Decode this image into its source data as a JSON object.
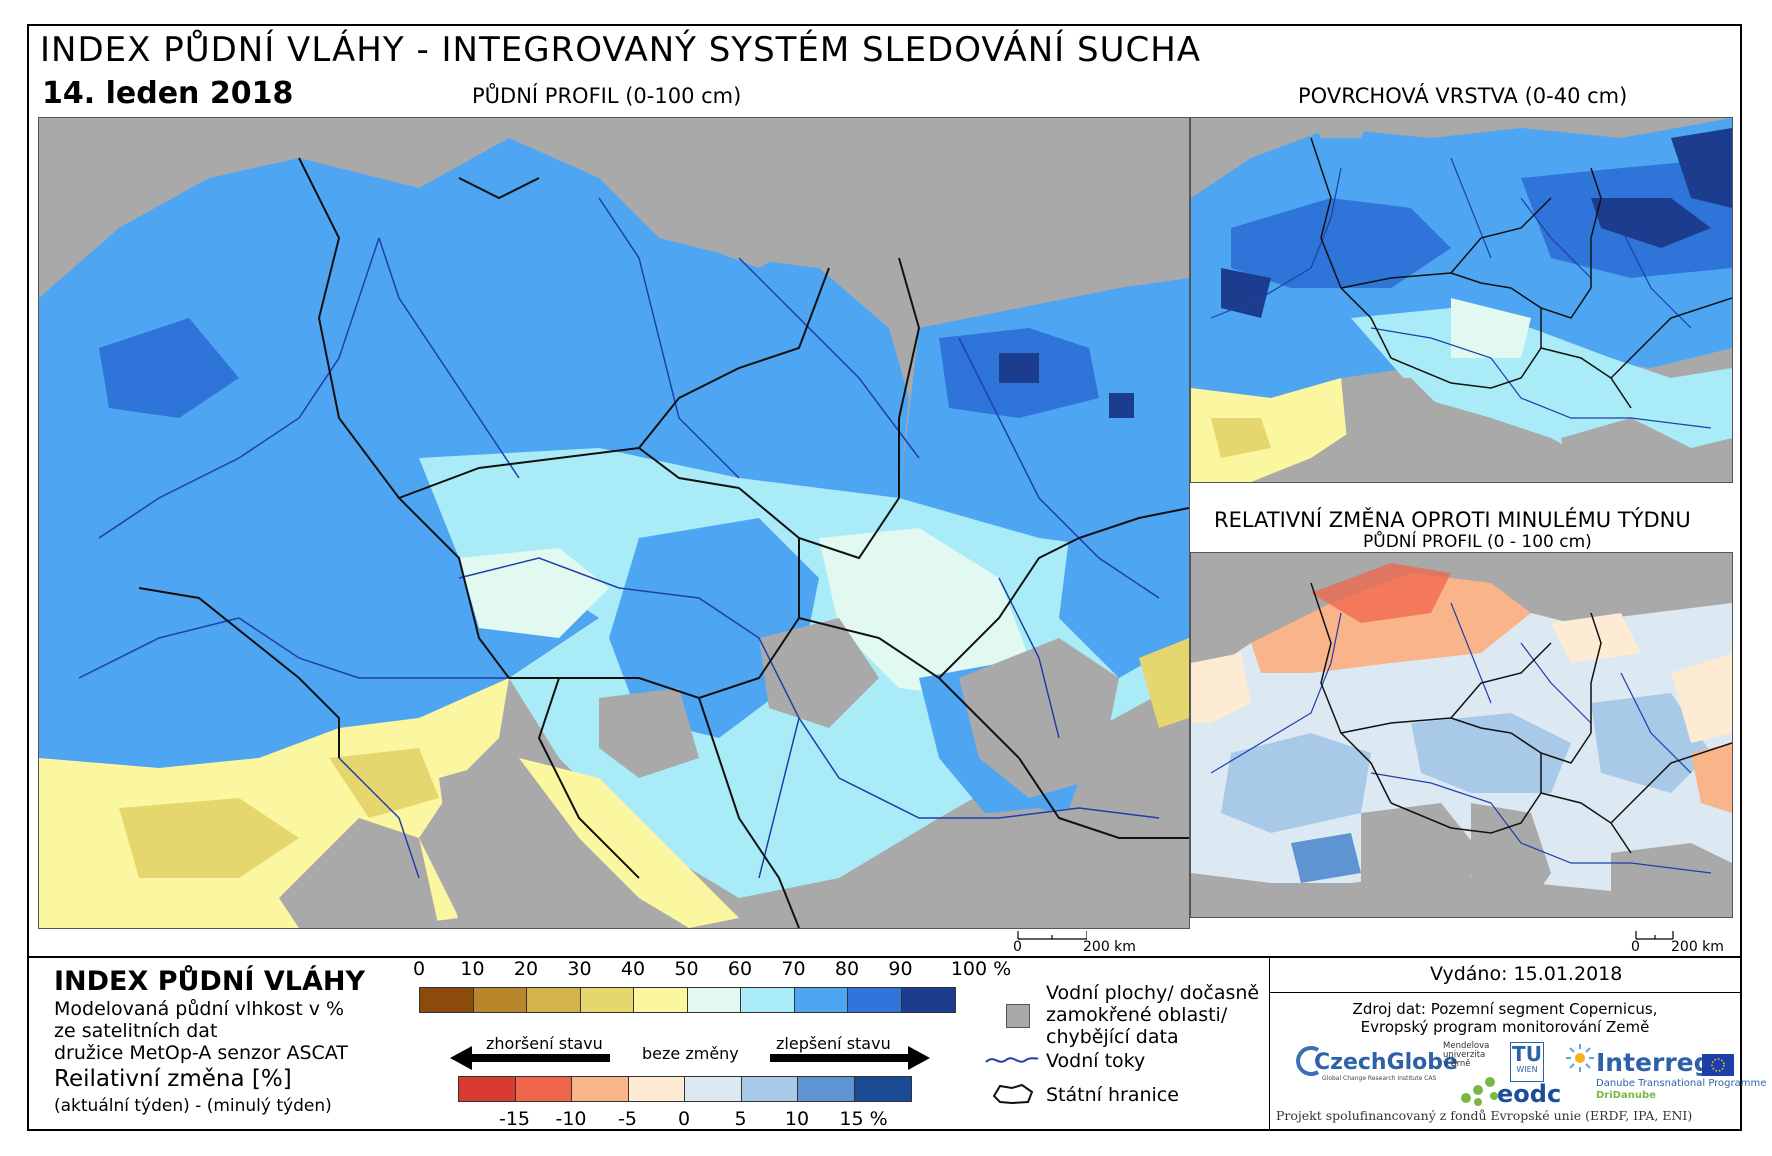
{
  "header": {
    "title": "INDEX PŮDNÍ VLÁHY - INTEGROVANÝ SYSTÉM SLEDOVÁNÍ SUCHA",
    "date": "14. leden 2018",
    "main_map_label": "PŮDNÍ PROFIL (0-100 cm)",
    "surface_map_label": "POVRCHOVÁ VRSTVA (0-40 cm)",
    "change_map_label": "RELATIVNÍ ZMĚNA OPROTI MINULÉMU TÝDNU",
    "change_map_sublabel": "PŮDNÍ PROFIL (0 - 100 cm)"
  },
  "scale_bar": {
    "start": "0",
    "end": "200 km"
  },
  "legend": {
    "title": "INDEX PŮDNÍ VLÁHY",
    "desc_line1": "Modelovaná půdní vlhkost v %",
    "desc_line2": "ze satelitních dat",
    "desc_line3": "družice MetOp-A senzor ASCAT",
    "rel_title": "Reilativní změna [%]",
    "rel_desc": "(aktuální týden) - (minulý týden)",
    "sm_ticks": [
      "0",
      "10",
      "20",
      "30",
      "40",
      "50",
      "60",
      "70",
      "80",
      "90",
      "100 %"
    ],
    "sm_colors": [
      "#8c4a0b",
      "#b8862a",
      "#d2b34c",
      "#e6d66e",
      "#fbf7a0",
      "#e2f9f2",
      "#a9ecf7",
      "#4ea5f2",
      "#2f74d8",
      "#1c3d8e"
    ],
    "arrow_worse": "zhoršení stavu",
    "arrow_nochange": "beze změny",
    "arrow_better": "zlepšení stavu",
    "chg_ticks": [
      "-15",
      "-10",
      "-5",
      "0",
      "5",
      "10",
      "15 %"
    ],
    "chg_colors": [
      "#d93a32",
      "#f0664a",
      "#f9b48a",
      "#fdebd3",
      "#dce9f3",
      "#a9c9e9",
      "#5e94d1",
      "#1a4a93"
    ],
    "water_label_l1": "Vodní plochy/ dočasně",
    "water_label_l2": "zamokřené oblasti/",
    "water_label_l3": "chybějící data",
    "rivers_label": "Vodní toky",
    "borders_label": "Státní hranice"
  },
  "footer": {
    "issued": "Vydáno: 15.01.2018",
    "source_l1": "Zdroj dat: Pozemní segment Copernicus,",
    "source_l2": "Evropský program monitorování Země",
    "cofund": "Projekt spolufinancovaný z fondů Evropské unie (ERDF, IPA, ENI)"
  },
  "logos": {
    "czechglobe": "CzechGlobe",
    "czechglobe_sub": "Global Change Research Institute CAS",
    "mendel_l1": "Mendelova",
    "mendel_l2": "univerzita",
    "mendel_l3": "v Brně",
    "tu": "TU",
    "tu_sub": "WIEN",
    "eodc": "eodc",
    "interreg": "Interreg",
    "interreg_sub1": "Danube Transnational Programme",
    "interreg_sub2": "DriDanube"
  },
  "colors": {
    "nodata": "#a9a9a9",
    "river": "#1f3fa8",
    "border": "#111111"
  }
}
